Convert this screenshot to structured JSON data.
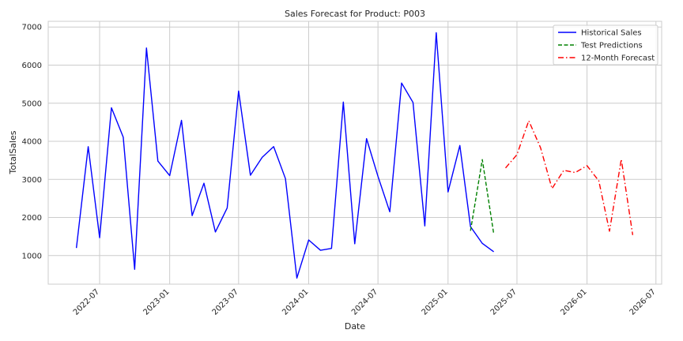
{
  "chart_data": {
    "type": "line",
    "title": "Sales Forecast for Product: P003",
    "xlabel": "Date",
    "ylabel": "TotalSales",
    "x_type": "date",
    "xlim": [
      "2022-02-16",
      "2026-07-16"
    ],
    "ylim": [
      250,
      7150
    ],
    "x_ticks": [
      "2022-07",
      "2023-01",
      "2023-07",
      "2024-01",
      "2024-07",
      "2025-01",
      "2025-07",
      "2026-01",
      "2026-07"
    ],
    "y_ticks": [
      1000,
      2000,
      3000,
      4000,
      5000,
      6000,
      7000
    ],
    "grid": true,
    "legend_position": "top-right",
    "series": [
      {
        "name": "Historical Sales",
        "color": "#0000ff",
        "style": "solid",
        "x": [
          "2022-05",
          "2022-06",
          "2022-07",
          "2022-08",
          "2022-09",
          "2022-10",
          "2022-11",
          "2022-12",
          "2023-01",
          "2023-02",
          "2023-03",
          "2023-04",
          "2023-05",
          "2023-06",
          "2023-07",
          "2023-08",
          "2023-09",
          "2023-10",
          "2023-11",
          "2023-12",
          "2024-01",
          "2024-02",
          "2024-03",
          "2024-04",
          "2024-05",
          "2024-06",
          "2024-07",
          "2024-08",
          "2024-09",
          "2024-10",
          "2024-11",
          "2024-12",
          "2025-01",
          "2025-02",
          "2025-03",
          "2025-04",
          "2025-05"
        ],
        "values": [
          1200,
          3860,
          1470,
          4880,
          4110,
          640,
          6450,
          3480,
          3100,
          4550,
          2050,
          2900,
          1620,
          2250,
          5320,
          3110,
          3580,
          3860,
          3020,
          410,
          1410,
          1140,
          1190,
          5030,
          1310,
          4070,
          3080,
          2150,
          5530,
          5020,
          1780,
          6850,
          2670,
          3890,
          1760,
          1320,
          1100
        ]
      },
      {
        "name": "Test Predictions",
        "color": "#008000",
        "style": "dashed",
        "x": [
          "2025-03",
          "2025-04",
          "2025-05"
        ],
        "values": [
          1650,
          3520,
          1570
        ]
      },
      {
        "name": "12-Month Forecast",
        "color": "#ff0000",
        "style": "dashdot",
        "x": [
          "2025-06",
          "2025-07",
          "2025-08",
          "2025-09",
          "2025-10",
          "2025-11",
          "2025-12",
          "2026-01",
          "2026-02",
          "2026-03",
          "2026-04",
          "2026-05"
        ],
        "values": [
          3300,
          3650,
          4540,
          3830,
          2760,
          3240,
          3180,
          3360,
          2960,
          1640,
          3530,
          1540
        ]
      }
    ]
  }
}
